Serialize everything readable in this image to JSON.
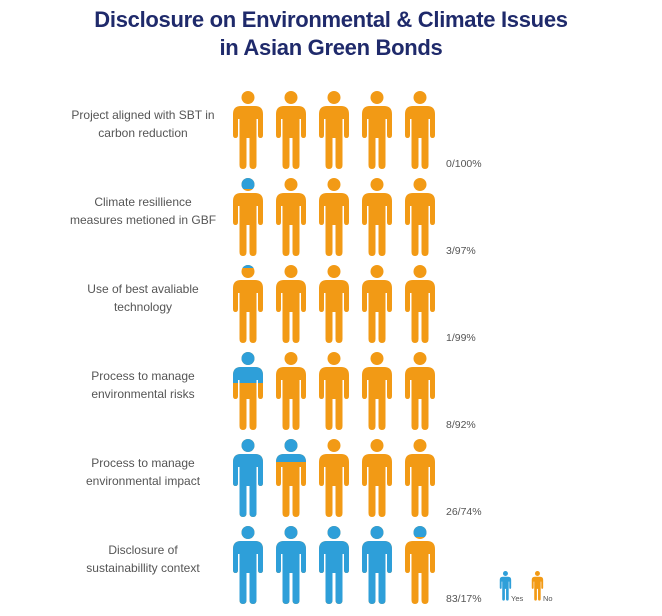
{
  "colors": {
    "yes": "#2e9fd9",
    "no": "#f29a15",
    "title": "#1f2a6b",
    "text": "#555555"
  },
  "chart_data": {
    "type": "pictogram",
    "title_lines": [
      "Disclosure on Environmental & Climate Issues",
      "in Asian Green Bonds"
    ],
    "icons_per_row": 5,
    "icon": "person-icon",
    "rows": [
      {
        "label_lines": [
          "Project aligned with SBT in",
          "carbon reduction"
        ],
        "yes_pct": 0,
        "no_pct": 100,
        "value_label": "0/100%"
      },
      {
        "label_lines": [
          "Climate resillience",
          "measures metioned in GBF"
        ],
        "yes_pct": 3,
        "no_pct": 97,
        "value_label": "3/97%"
      },
      {
        "label_lines": [
          "Use of best avaliable",
          "technology"
        ],
        "yes_pct": 1,
        "no_pct": 99,
        "value_label": "1/99%"
      },
      {
        "label_lines": [
          "Process to manage",
          "environmental risks"
        ],
        "yes_pct": 8,
        "no_pct": 92,
        "value_label": "8/92%"
      },
      {
        "label_lines": [
          "Process to manage",
          "environmental impact"
        ],
        "yes_pct": 26,
        "no_pct": 74,
        "value_label": "26/74%"
      },
      {
        "label_lines": [
          "Disclosure of",
          "sustainabillity context"
        ],
        "yes_pct": 83,
        "no_pct": 17,
        "value_label": "83/17%"
      }
    ],
    "legend": [
      {
        "label": "Yes",
        "color_key": "yes"
      },
      {
        "label": "No",
        "color_key": "no"
      }
    ]
  }
}
